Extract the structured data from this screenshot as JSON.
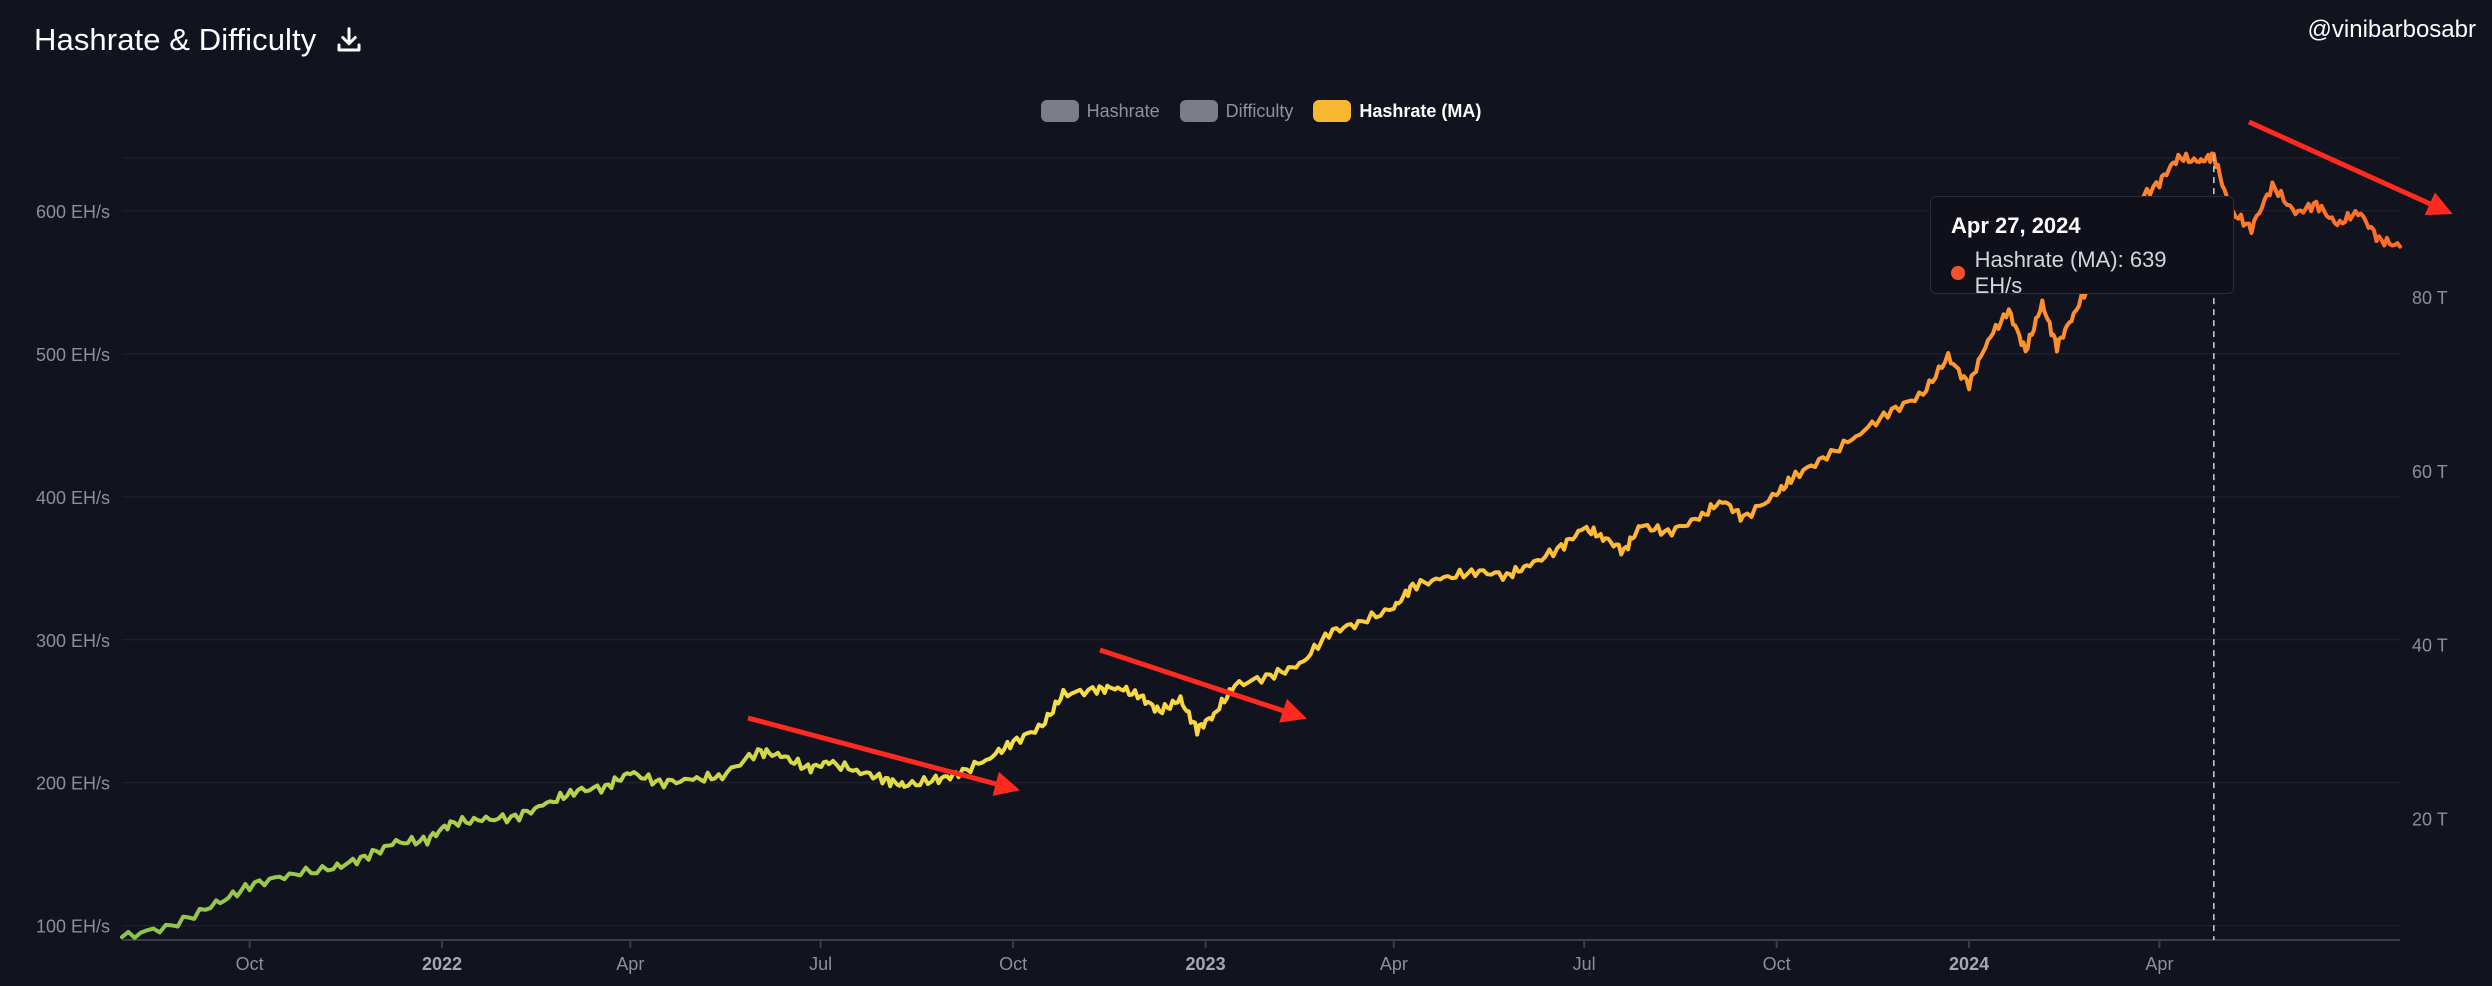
{
  "header": {
    "title": "Hashrate & Difficulty",
    "download_icon": "download-icon",
    "handle": "@vinibarbosabr"
  },
  "legend": [
    {
      "label": "Hashrate",
      "color": "#7b7d87",
      "active": false
    },
    {
      "label": "Difficulty",
      "color": "#7b7d87",
      "active": false
    },
    {
      "label": "Hashrate (MA)",
      "color": "#f7b731",
      "active": true
    }
  ],
  "tooltip": {
    "date": "Apr 27, 2024",
    "text": "Hashrate (MA): 639 EH/s",
    "dot_color": "#f4512c"
  },
  "chart_data": {
    "type": "line",
    "title": "Hashrate & Difficulty",
    "x_range": [
      "2021-08-01",
      "2024-07-25"
    ],
    "y_left": {
      "ticks": [
        100,
        200,
        300,
        400,
        500,
        600
      ],
      "tick_labels": [
        "100 EH/s",
        "200 EH/s",
        "300 EH/s",
        "400 EH/s",
        "500 EH/s",
        "600 EH/s"
      ],
      "range": [
        90,
        637
      ]
    },
    "y_right": {
      "ticks": [
        20,
        40,
        60,
        80
      ],
      "tick_labels": [
        "20 T",
        "40 T",
        "60 T",
        "80 T"
      ]
    },
    "x_ticks": [
      {
        "date": "2021-10-01",
        "label": "Oct",
        "bold": false
      },
      {
        "date": "2022-01-01",
        "label": "2022",
        "bold": true
      },
      {
        "date": "2022-04-01",
        "label": "Apr",
        "bold": false
      },
      {
        "date": "2022-07-01",
        "label": "Jul",
        "bold": false
      },
      {
        "date": "2022-10-01",
        "label": "Oct",
        "bold": false
      },
      {
        "date": "2023-01-01",
        "label": "2023",
        "bold": true
      },
      {
        "date": "2023-04-01",
        "label": "Apr",
        "bold": false
      },
      {
        "date": "2023-07-01",
        "label": "Jul",
        "bold": false
      },
      {
        "date": "2023-10-01",
        "label": "Oct",
        "bold": false
      },
      {
        "date": "2024-01-01",
        "label": "2024",
        "bold": true
      },
      {
        "date": "2024-04-01",
        "label": "Apr",
        "bold": false
      }
    ],
    "series": [
      {
        "name": "Hashrate (MA)",
        "color_stops": [
          "#8bc34a",
          "#b9d24a",
          "#f6e046",
          "#ffc53b",
          "#ff9a2c",
          "#ff6a2a"
        ],
        "points": [
          [
            "2021-08-01",
            92
          ],
          [
            "2021-08-25",
            100
          ],
          [
            "2021-09-15",
            115
          ],
          [
            "2021-10-01",
            128
          ],
          [
            "2021-10-20",
            136
          ],
          [
            "2021-11-10",
            140
          ],
          [
            "2021-11-25",
            148
          ],
          [
            "2021-12-10",
            158
          ],
          [
            "2021-12-25",
            160
          ],
          [
            "2022-01-05",
            172
          ],
          [
            "2022-01-20",
            174
          ],
          [
            "2022-02-05",
            176
          ],
          [
            "2022-02-20",
            185
          ],
          [
            "2022-03-05",
            194
          ],
          [
            "2022-03-20",
            197
          ],
          [
            "2022-04-01",
            207
          ],
          [
            "2022-04-15",
            200
          ],
          [
            "2022-05-01",
            202
          ],
          [
            "2022-05-15",
            205
          ],
          [
            "2022-06-01",
            222
          ],
          [
            "2022-06-12",
            219
          ],
          [
            "2022-06-25",
            210
          ],
          [
            "2022-07-05",
            214
          ],
          [
            "2022-07-20",
            208
          ],
          [
            "2022-08-01",
            202
          ],
          [
            "2022-08-10",
            198
          ],
          [
            "2022-08-25",
            202
          ],
          [
            "2022-09-05",
            206
          ],
          [
            "2022-09-20",
            218
          ],
          [
            "2022-10-01",
            228
          ],
          [
            "2022-10-15",
            240
          ],
          [
            "2022-10-25",
            262
          ],
          [
            "2022-11-10",
            265
          ],
          [
            "2022-11-20",
            267
          ],
          [
            "2022-12-01",
            260
          ],
          [
            "2022-12-10",
            250
          ],
          [
            "2022-12-20",
            258
          ],
          [
            "2022-12-28",
            237
          ],
          [
            "2023-01-05",
            248
          ],
          [
            "2023-01-15",
            268
          ],
          [
            "2023-02-01",
            275
          ],
          [
            "2023-02-15",
            282
          ],
          [
            "2023-03-01",
            305
          ],
          [
            "2023-03-15",
            312
          ],
          [
            "2023-04-01",
            322
          ],
          [
            "2023-04-10",
            338
          ],
          [
            "2023-04-25",
            343
          ],
          [
            "2023-05-10",
            348
          ],
          [
            "2023-05-25",
            345
          ],
          [
            "2023-06-05",
            352
          ],
          [
            "2023-06-20",
            365
          ],
          [
            "2023-07-01",
            378
          ],
          [
            "2023-07-10",
            372
          ],
          [
            "2023-07-20",
            362
          ],
          [
            "2023-07-28",
            380
          ],
          [
            "2023-08-10",
            375
          ],
          [
            "2023-08-25",
            385
          ],
          [
            "2023-09-05",
            398
          ],
          [
            "2023-09-15",
            385
          ],
          [
            "2023-10-01",
            402
          ],
          [
            "2023-10-10",
            415
          ],
          [
            "2023-10-25",
            428
          ],
          [
            "2023-11-10",
            445
          ],
          [
            "2023-11-25",
            460
          ],
          [
            "2023-12-10",
            472
          ],
          [
            "2023-12-22",
            498
          ],
          [
            "2024-01-01",
            478
          ],
          [
            "2024-01-10",
            510
          ],
          [
            "2024-01-20",
            530
          ],
          [
            "2024-01-28",
            502
          ],
          [
            "2024-02-05",
            535
          ],
          [
            "2024-02-12",
            505
          ],
          [
            "2024-02-20",
            528
          ],
          [
            "2024-03-01",
            555
          ],
          [
            "2024-03-10",
            585
          ],
          [
            "2024-03-20",
            605
          ],
          [
            "2024-04-01",
            620
          ],
          [
            "2024-04-10",
            638
          ],
          [
            "2024-04-20",
            634
          ],
          [
            "2024-04-27",
            639
          ],
          [
            "2024-05-05",
            600
          ],
          [
            "2024-05-15",
            588
          ],
          [
            "2024-05-25",
            618
          ],
          [
            "2024-06-05",
            598
          ],
          [
            "2024-06-15",
            605
          ],
          [
            "2024-06-25",
            590
          ],
          [
            "2024-07-05",
            600
          ],
          [
            "2024-07-15",
            580
          ],
          [
            "2024-07-25",
            575
          ]
        ]
      }
    ],
    "hover": {
      "date": "2024-04-27",
      "value": 639
    }
  }
}
